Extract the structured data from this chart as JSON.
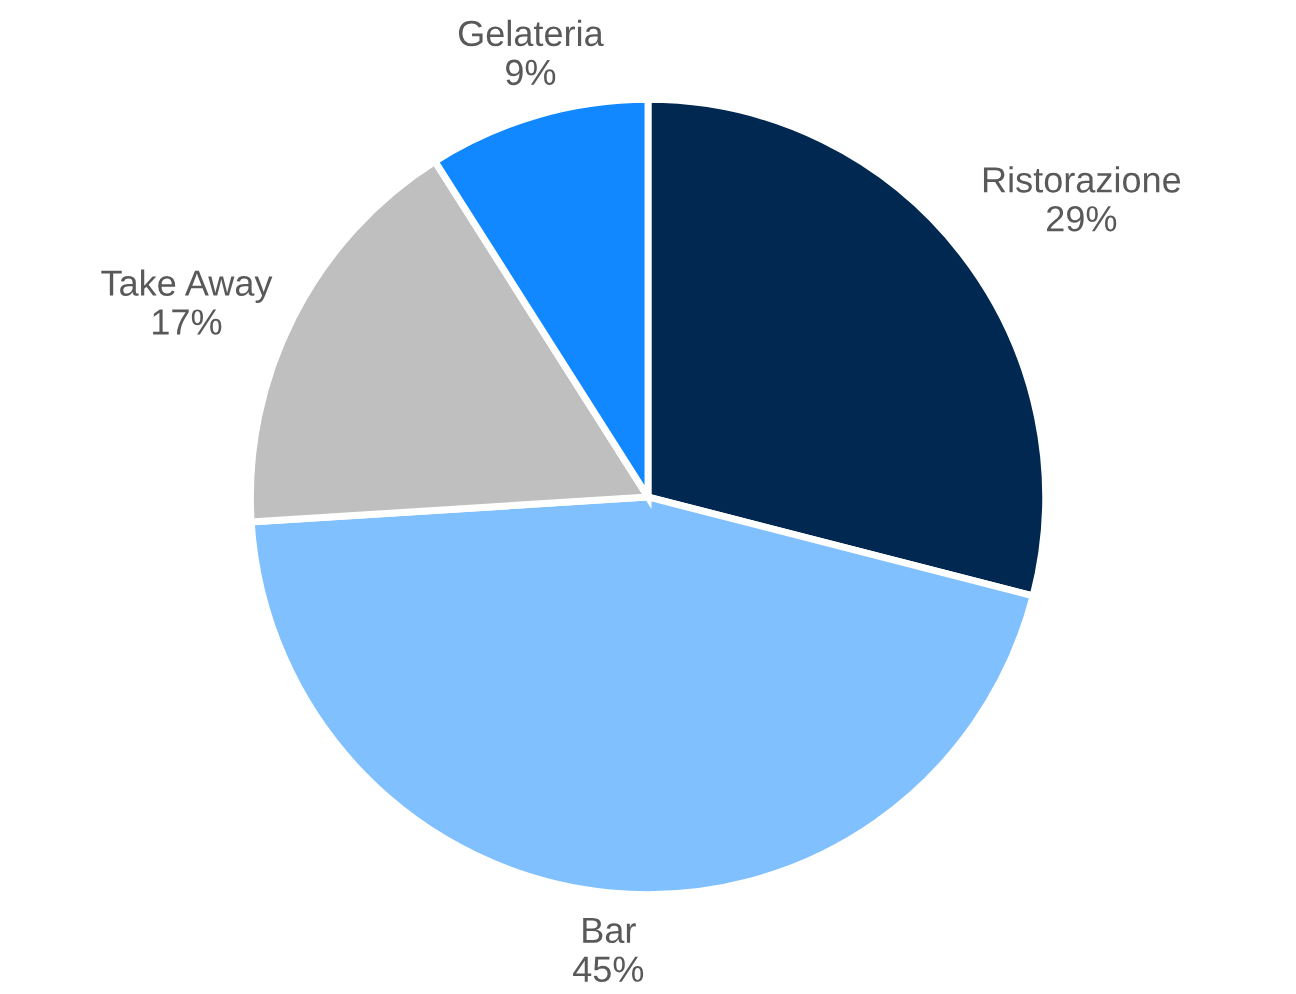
{
  "chart_data": {
    "type": "pie",
    "categories": [
      "Ristorazione",
      "Bar",
      "Take Away",
      "Gelateria"
    ],
    "values": [
      29,
      45,
      17,
      9
    ],
    "colors": [
      "#002850",
      "#80c0ff",
      "#bfbfbf",
      "#1188ff"
    ],
    "value_labels": [
      "29%",
      "45%",
      "17%",
      "9%"
    ]
  }
}
